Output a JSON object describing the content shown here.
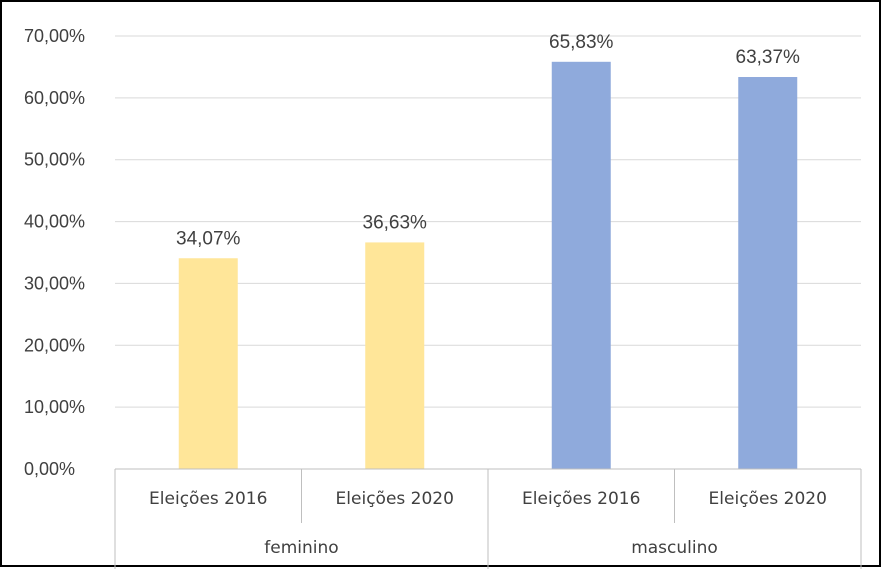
{
  "chart_data": {
    "type": "bar",
    "title": "",
    "xlabel": "",
    "ylabel": "",
    "ylim": [
      0,
      70
    ],
    "y_ticks": [
      "0,00%",
      "10,00%",
      "20,00%",
      "30,00%",
      "40,00%",
      "50,00%",
      "60,00%",
      "70,00%"
    ],
    "y_tick_values": [
      0,
      10,
      20,
      30,
      40,
      50,
      60,
      70
    ],
    "grid": true,
    "groups": [
      {
        "name": "feminino",
        "color": "#FFE699",
        "bars": [
          {
            "category": "Eleições 2016",
            "value": 34.07,
            "label": "34,07%"
          },
          {
            "category": "Eleições 2020",
            "value": 36.63,
            "label": "36,63%"
          }
        ]
      },
      {
        "name": "masculino",
        "color": "#8FAADC",
        "bars": [
          {
            "category": "Eleições 2016",
            "value": 65.83,
            "label": "65,83%"
          },
          {
            "category": "Eleições 2020",
            "value": 63.37,
            "label": "63,37%"
          }
        ]
      }
    ]
  },
  "colors": {
    "gridline": "#D9D9D9",
    "axis": "#BFBFBF",
    "text": "#404040"
  }
}
